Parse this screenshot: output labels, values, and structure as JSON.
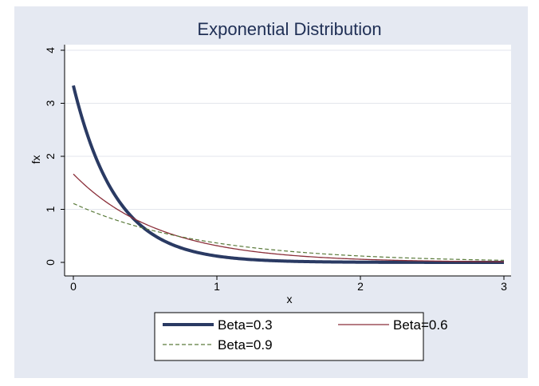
{
  "chart_data": {
    "type": "line",
    "title": "Exponential Distribution",
    "xlabel": "x",
    "ylabel": "fx",
    "xlim": [
      0,
      3
    ],
    "ylim": [
      0,
      4
    ],
    "xticks": [
      "0",
      "1",
      "2",
      "3"
    ],
    "yticks": [
      "0",
      "1",
      "2",
      "3",
      "4"
    ],
    "grid": true,
    "legend_position": "bottom",
    "series": [
      {
        "name": "Beta=0.3",
        "beta": 0.3,
        "color": "#2a3a63",
        "style": "solid-thick"
      },
      {
        "name": "Beta=0.6",
        "beta": 0.6,
        "color": "#8b2f3a",
        "style": "solid"
      },
      {
        "name": "Beta=0.9",
        "beta": 0.9,
        "color": "#5a7a3a",
        "style": "dashed"
      }
    ]
  }
}
